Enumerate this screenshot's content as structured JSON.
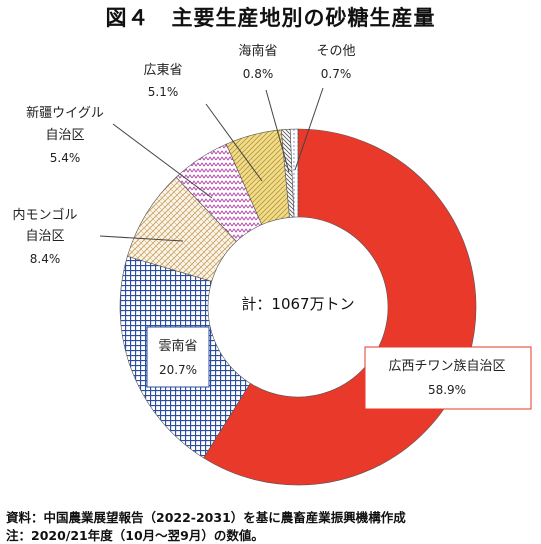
{
  "chart_data": {
    "type": "pie",
    "style": "donut",
    "title": "図４　主要生産地別の砂糖生産量",
    "center_label": "計：1067万トン",
    "slices": [
      {
        "name": "広西チワン族自治区",
        "value": 58.9,
        "value_label": "58.9%",
        "color": "#e8392a"
      },
      {
        "name": "雲南省",
        "value": 20.7,
        "value_label": "20.7%",
        "color": "#2b4ea0"
      },
      {
        "name": "内モンゴル自治区",
        "value": 8.4,
        "value_label": "8.4%",
        "color": "#caa872"
      },
      {
        "name": "新疆ウイグル自治区",
        "value": 5.4,
        "value_label": "5.4%",
        "color": "#b23aa8"
      },
      {
        "name": "広東省",
        "value": 5.1,
        "value_label": "5.1%",
        "color": "#e2c25a"
      },
      {
        "name": "海南省",
        "value": 0.8,
        "value_label": "0.8%",
        "color": "#666666"
      },
      {
        "name": "その他",
        "value": 0.7,
        "value_label": "0.7%",
        "color": "#5a7ac0"
      }
    ],
    "label_lines": {
      "広西チワン族自治区": [
        "広西チワン族自治区"
      ],
      "雲南省": [
        "雲南省"
      ],
      "内モンゴル自治区": [
        "内モンゴル",
        "自治区"
      ],
      "新疆ウイグル自治区": [
        "新疆ウイグル",
        "自治区"
      ],
      "広東省": [
        "広東省"
      ],
      "海南省": [
        "海南省"
      ],
      "その他": [
        "その他"
      ]
    }
  },
  "notes": {
    "source": "資料：中国農業展望報告（2022-2031）を基に農畜産業振興機構作成",
    "note": "注：2020/21年度（10月～翌9月）の数値。"
  }
}
